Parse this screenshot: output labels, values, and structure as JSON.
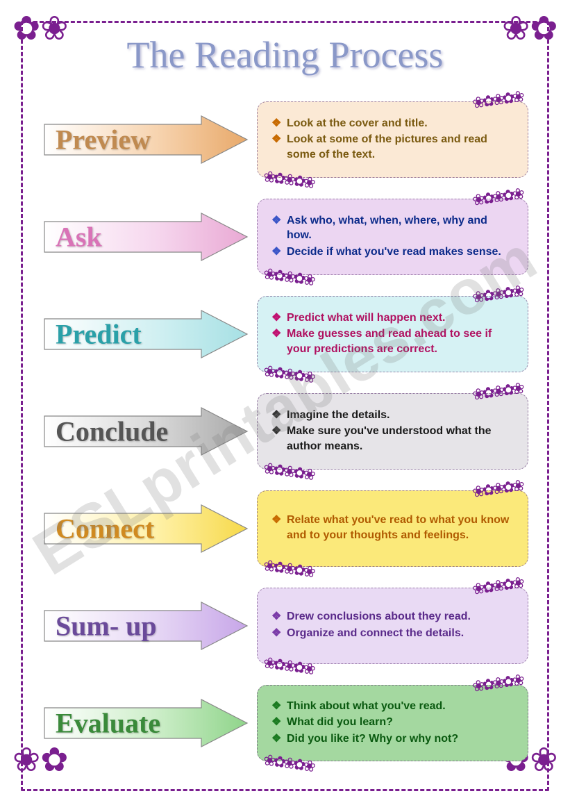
{
  "title": "The Reading Process",
  "title_color": "#8a98c8",
  "border_color": "#7a1f8f",
  "watermark": "ESLprintables.com",
  "steps": [
    {
      "label": "Preview",
      "label_color": "#c08a50",
      "arrow_fill": "linear-gradient(90deg,#ffffff 0%,#f7d4b0 55%,#e8a96a 100%)",
      "box_bg": "#fbe9d5",
      "text_color": "#7a5a10",
      "bullet_color": "#c76a00",
      "items": [
        "Look at the cover and title.",
        "Look at some of the pictures and read some of the text."
      ]
    },
    {
      "label": "Ask",
      "label_color": "#d973b7",
      "arrow_fill": "linear-gradient(90deg,#ffffff 0%,#f6d7ee 55%,#e9a9d4 100%)",
      "box_bg": "#ecd6f2",
      "text_color": "#0b2a8a",
      "bullet_color": "#3a55c7",
      "items": [
        "Ask who, what, when, where, why and how.",
        "Decide if what you've read makes sense."
      ]
    },
    {
      "label": "Predict",
      "label_color": "#2aa0a8",
      "arrow_fill": "linear-gradient(90deg,#ffffff 0%,#d1f0f2 55%,#a6e0e4 100%)",
      "box_bg": "#d6f2f4",
      "text_color": "#b01060",
      "bullet_color": "#c01070",
      "items": [
        "Predict what will happen next.",
        "Make guesses and read ahead to see if your predictions are correct."
      ]
    },
    {
      "label": "Conclude",
      "label_color": "#555555",
      "arrow_fill": "linear-gradient(90deg,#ffffff 0%,#d8d8d8 55%,#a8a8a8 100%)",
      "box_bg": "#e6e4e8",
      "text_color": "#1a1a1a",
      "bullet_color": "#333333",
      "items": [
        "Imagine the details.",
        "Make sure you've understood what the author means."
      ]
    },
    {
      "label": "Connect",
      "label_color": "#d08a20",
      "arrow_fill": "linear-gradient(90deg,#ffffff 0%,#fff1a8 55%,#f6d94a 100%)",
      "box_bg": "#fbe97a",
      "text_color": "#b05a00",
      "bullet_color": "#c76a00",
      "items": [
        "Relate what you've read to what you know and to your thoughts and feelings."
      ]
    },
    {
      "label": "Sum- up",
      "label_color": "#6a4a9a",
      "arrow_fill": "linear-gradient(90deg,#ffffff 0%,#e6d7f5 55%,#c7a6e8 100%)",
      "box_bg": "#e9daf4",
      "text_color": "#5a2a8a",
      "bullet_color": "#7a3aa8",
      "items": [
        "Drew conclusions about they read.",
        "Organize and connect the details."
      ]
    },
    {
      "label": "Evaluate",
      "label_color": "#3a8a3a",
      "arrow_fill": "linear-gradient(90deg,#ffffff 0%,#cdeec9 55%,#8fd48a 100%)",
      "box_bg": "#a4d8a0",
      "text_color": "#0a5a10",
      "bullet_color": "#1a7a20",
      "items": [
        "Think about what you've read.",
        "What did you learn?",
        "Did you like it? Why or why not?"
      ]
    }
  ]
}
